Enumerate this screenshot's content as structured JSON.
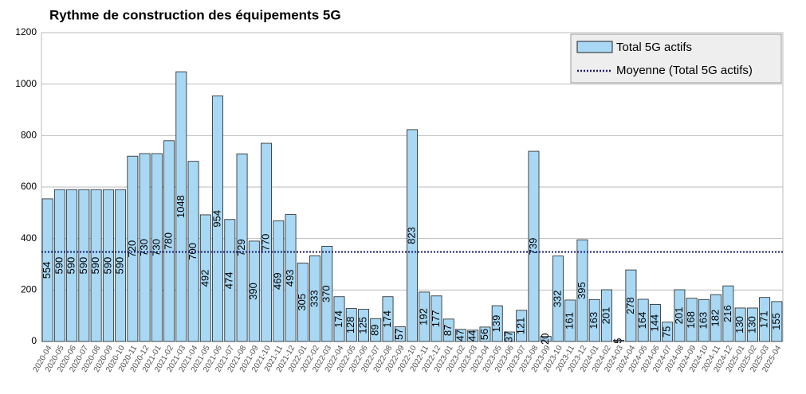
{
  "chart_data": {
    "type": "bar",
    "title": "Rythme de construction des équipements 5G",
    "categories": [
      "2020-04",
      "2020-05",
      "2020-06",
      "2020-07",
      "2020-08",
      "2020-09",
      "2020-10",
      "2020-11",
      "2020-12",
      "2021-01",
      "2021-02",
      "2021-03",
      "2021-04",
      "2021-05",
      "2021-06",
      "2021-07",
      "2021-08",
      "2021-09",
      "2021-10",
      "2021-11",
      "2021-12",
      "2022-01",
      "2022-02",
      "2022-03",
      "2022-04",
      "2022-05",
      "2022-06",
      "2022-07",
      "2022-08",
      "2022-09",
      "2022-10",
      "2022-11",
      "2022-12",
      "2023-01",
      "2023-02",
      "2023-03",
      "2023-04",
      "2023-05",
      "2023-06",
      "2023-07",
      "2023-08",
      "2023-09",
      "2023-10",
      "2023-11",
      "2023-12",
      "2024-01",
      "2024-02",
      "2024-03",
      "2024-04",
      "2024-05",
      "2024-06",
      "2024-07",
      "2024-08",
      "2024-09",
      "2024-10",
      "2024-11",
      "2024-12",
      "2025-01",
      "2025-02",
      "2025-03",
      "2025-04"
    ],
    "series": [
      {
        "name": "Total 5G actifs",
        "color": "#a8d8f4",
        "values": [
          554,
          590,
          590,
          590,
          590,
          590,
          590,
          720,
          730,
          730,
          780,
          1048,
          700,
          492,
          954,
          474,
          729,
          390,
          770,
          469,
          493,
          305,
          333,
          370,
          174,
          128,
          125,
          89,
          174,
          57,
          823,
          192,
          177,
          87,
          47,
          44,
          56,
          139,
          37,
          121,
          739,
          20,
          332,
          161,
          395,
          163,
          201,
          5,
          278,
          164,
          144,
          75,
          201,
          168,
          163,
          182,
          216,
          130,
          130,
          171,
          155
        ]
      }
    ],
    "average": {
      "name": "Moyenne (Total 5G actifs)",
      "value": 348,
      "color": "#1a1a6e"
    },
    "ylim": [
      0,
      1200
    ],
    "yticks": [
      0,
      200,
      400,
      600,
      800,
      1000,
      1200
    ],
    "grid": true,
    "legend": "top-right"
  }
}
